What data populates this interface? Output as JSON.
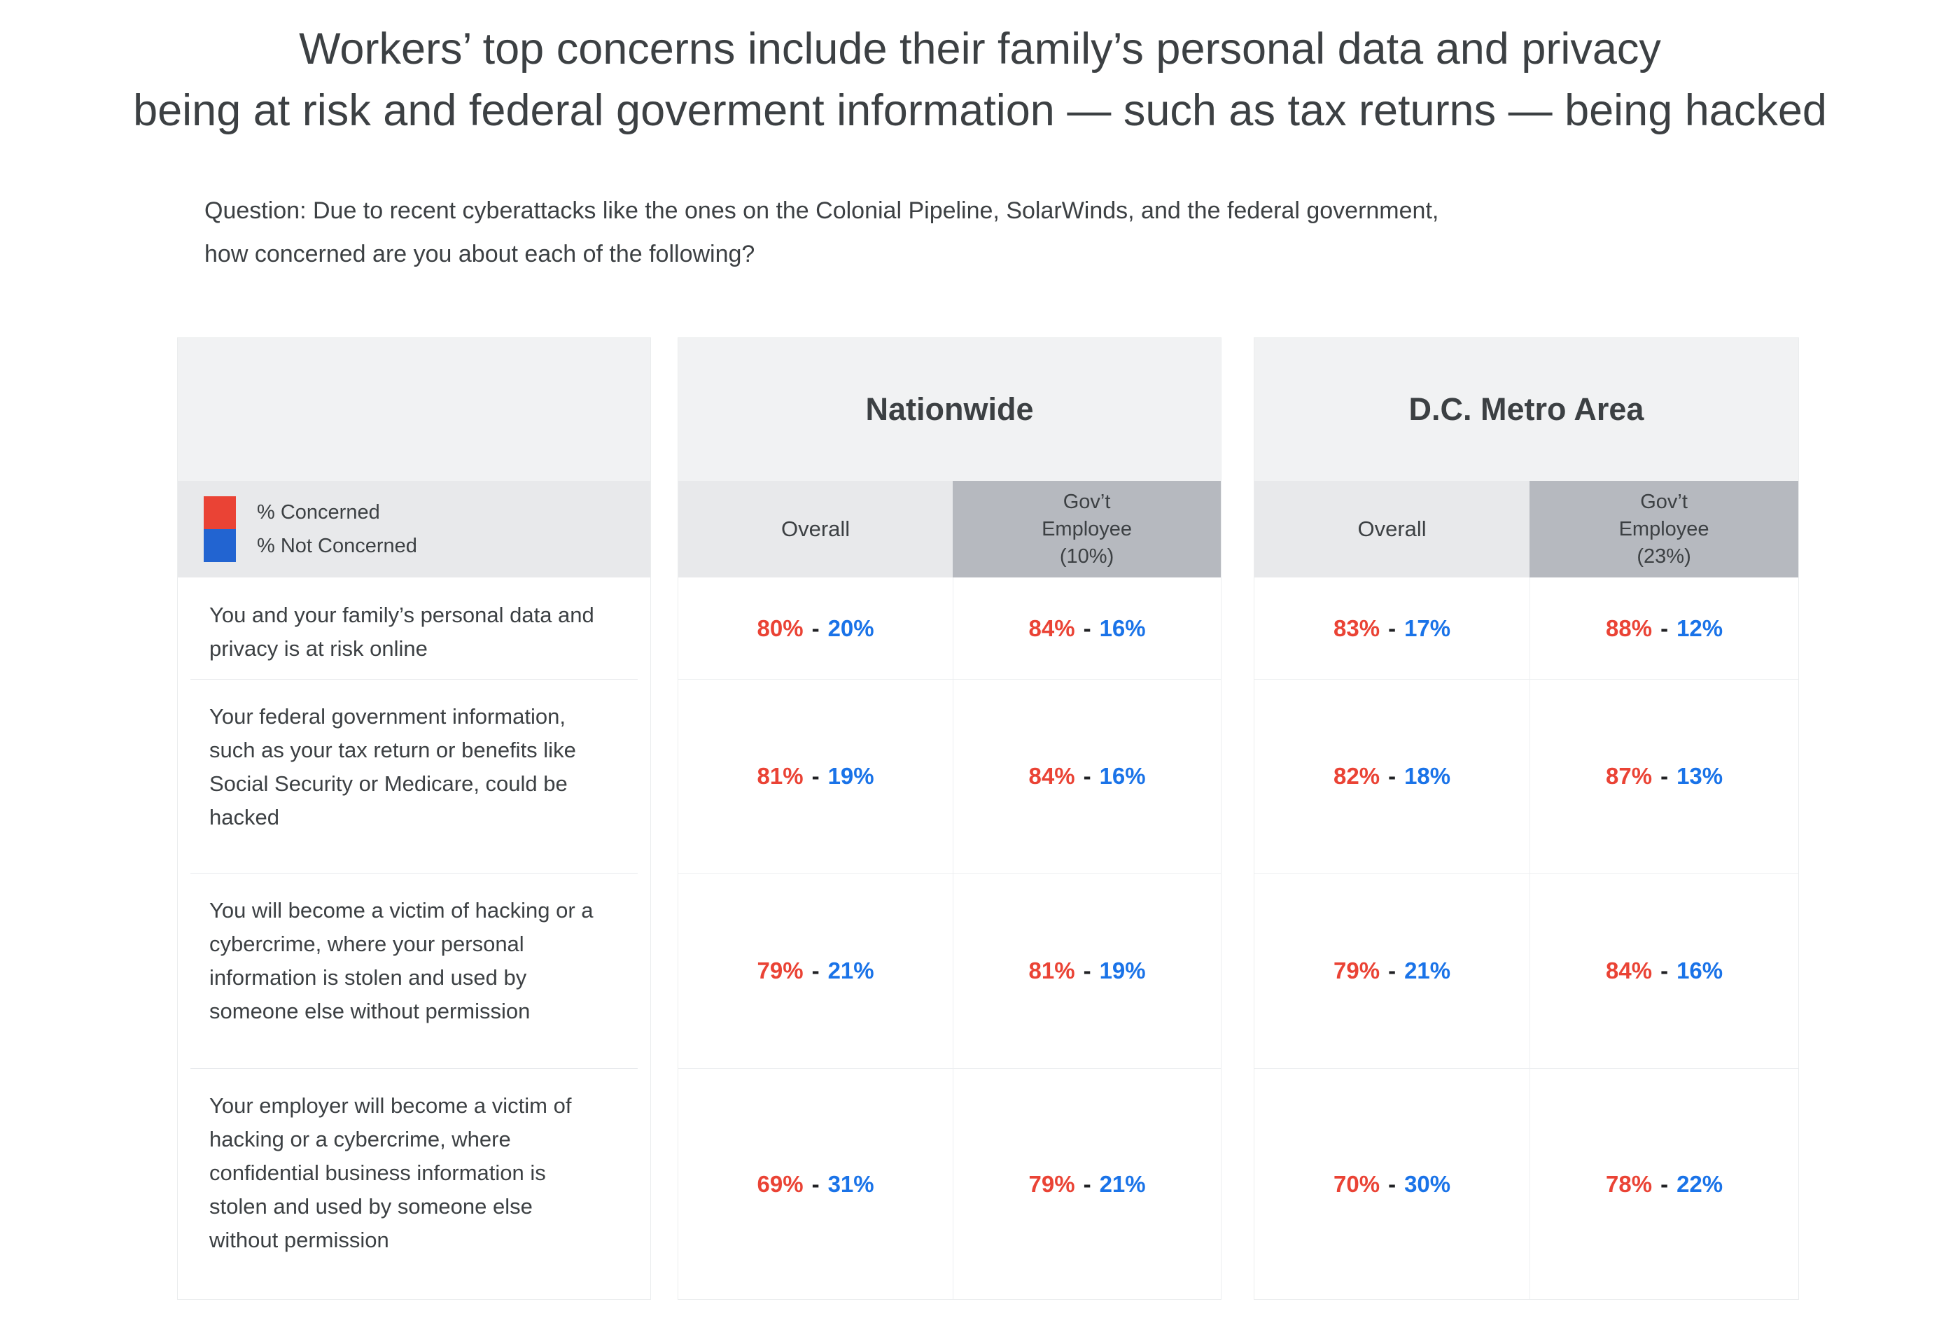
{
  "colors": {
    "concerned": "#ea4335",
    "not_concerned": "#1a73e8",
    "legend_swatch_blue": "#2264d1",
    "text_dark": "#3c4043",
    "band_light_gray": "#f1f2f3",
    "band_mid_gray": "#e8e9eb",
    "band_dark_gray": "#b6b9bf"
  },
  "title": {
    "text": "Workers’ top concerns include their family’s personal data and privacy\nbeing at risk and federal goverment information — such as tax returns —  being hacked"
  },
  "question": {
    "text": "Question: Due to recent cyberattacks like the ones on the Colonial Pipeline, SolarWinds, and the federal government,\nhow concerned are you about each of the following?"
  },
  "legend": {
    "concerned_label": "% Concerned",
    "not_concerned_label": "% Not Concerned"
  },
  "table": {
    "separator": "-",
    "groups": [
      {
        "name": "Nationwide",
        "overall_label": "Overall",
        "govt_label": "Gov’t\nEmployee\n(10%)"
      },
      {
        "name": "D.C. Metro Area",
        "overall_label": "Overall",
        "govt_label": "Gov’t\nEmployee\n(23%)"
      }
    ],
    "rows": [
      {
        "label": "You and your family’s personal data and privacy is at risk online",
        "cells": [
          {
            "concerned": "80%",
            "not_concerned": "20%"
          },
          {
            "concerned": "84%",
            "not_concerned": "16%"
          },
          {
            "concerned": "83%",
            "not_concerned": "17%"
          },
          {
            "concerned": "88%",
            "not_concerned": "12%"
          }
        ]
      },
      {
        "label": "Your federal government information, such as your tax return or benefits like Social Security or Medicare, could be hacked",
        "cells": [
          {
            "concerned": "81%",
            "not_concerned": "19%"
          },
          {
            "concerned": "84%",
            "not_concerned": "16%"
          },
          {
            "concerned": "82%",
            "not_concerned": "18%"
          },
          {
            "concerned": "87%",
            "not_concerned": "13%"
          }
        ]
      },
      {
        "label": "You will become a victim of hacking or a cybercrime, where your personal information is stolen and used by someone else without permission",
        "cells": [
          {
            "concerned": "79%",
            "not_concerned": "21%"
          },
          {
            "concerned": "81%",
            "not_concerned": "19%"
          },
          {
            "concerned": "79%",
            "not_concerned": "21%"
          },
          {
            "concerned": "84%",
            "not_concerned": "16%"
          }
        ]
      },
      {
        "label": "Your employer will become a victim of hacking or a cybercrime, where confidential business information is stolen and used by someone else without permission",
        "cells": [
          {
            "concerned": "69%",
            "not_concerned": "31%"
          },
          {
            "concerned": "79%",
            "not_concerned": "21%"
          },
          {
            "concerned": "70%",
            "not_concerned": "30%"
          },
          {
            "concerned": "78%",
            "not_concerned": "22%"
          }
        ]
      }
    ]
  },
  "chart_data": {
    "type": "table",
    "title": "Workers’ top concerns include their family’s personal data and privacy being at risk and federal goverment information — such as tax returns — being hacked",
    "question": "Due to recent cyberattacks like the ones on the Colonial Pipeline, SolarWinds, and the federal government, how concerned are you about each of the following?",
    "legend": [
      "% Concerned",
      "% Not Concerned"
    ],
    "column_groups": [
      "Nationwide",
      "D.C. Metro Area"
    ],
    "columns": [
      "Nationwide Overall",
      "Nationwide Gov’t Employee (10%)",
      "D.C. Metro Area Overall",
      "D.C. Metro Area Gov’t Employee (23%)"
    ],
    "rows": [
      {
        "label": "You and your family’s personal data and privacy is at risk online",
        "concerned_pct": [
          80,
          84,
          83,
          88
        ],
        "not_concerned_pct": [
          20,
          16,
          17,
          12
        ]
      },
      {
        "label": "Your federal government information, such as your tax return or benefits like Social Security or Medicare, could be hacked",
        "concerned_pct": [
          81,
          84,
          82,
          87
        ],
        "not_concerned_pct": [
          19,
          16,
          18,
          13
        ]
      },
      {
        "label": "You will become a victim of hacking or a cybercrime, where your personal information is stolen and used by someone else without permission",
        "concerned_pct": [
          79,
          81,
          79,
          84
        ],
        "not_concerned_pct": [
          21,
          19,
          21,
          16
        ]
      },
      {
        "label": "Your employer will become a victim of hacking or a cybercrime, where confidential business information is stolen and used by someone else without permission",
        "concerned_pct": [
          69,
          79,
          70,
          78
        ],
        "not_concerned_pct": [
          31,
          21,
          30,
          22
        ]
      }
    ]
  }
}
